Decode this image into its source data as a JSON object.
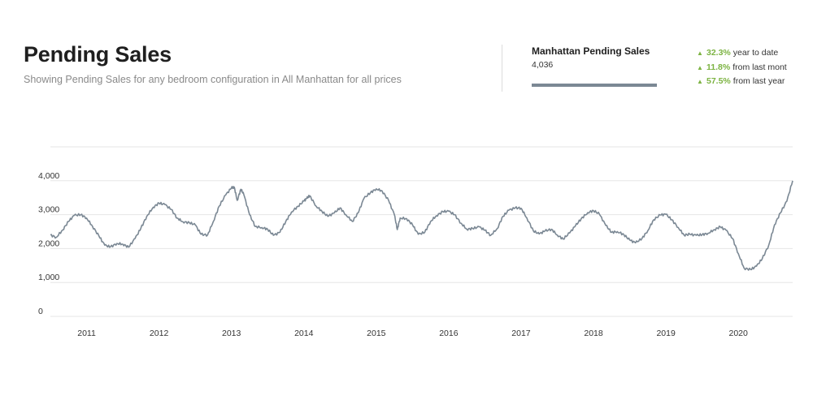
{
  "header": {
    "title": "Pending Sales",
    "subtitle": "Showing Pending Sales for any bedroom configuration in All Manhattan for all prices"
  },
  "summary": {
    "title": "Manhattan Pending Sales",
    "value": "4,036",
    "bar_color": "#7b8894",
    "stats": [
      {
        "pct": "32.3%",
        "text": "year to date",
        "direction": "up"
      },
      {
        "pct": "11.8%",
        "text": "from last mont",
        "direction": "up"
      },
      {
        "pct": "57.5%",
        "text": "from last year",
        "direction": "up"
      }
    ]
  },
  "colors": {
    "line": "#7b8894",
    "positive": "#7cb342",
    "grid": "#e6e6e6"
  },
  "chart_data": {
    "type": "line",
    "title": "",
    "xlabel": "",
    "ylabel": "",
    "ylim": [
      0,
      5000
    ],
    "y_ticks": [
      "0",
      "1,000",
      "2,000",
      "3,000",
      "4,000"
    ],
    "y_tick_values": [
      0,
      1000,
      2000,
      3000,
      4000
    ],
    "x_ticks": [
      "2011",
      "2012",
      "2013",
      "2014",
      "2015",
      "2016",
      "2017",
      "2018",
      "2019",
      "2020"
    ],
    "x_tick_values": [
      2011,
      2012,
      2013,
      2014,
      2015,
      2016,
      2017,
      2018,
      2019,
      2020
    ],
    "xlim": [
      2010.5,
      2020.75
    ],
    "grid": true,
    "legend": "none",
    "series": [
      {
        "x": [
          2010.5,
          2010.58,
          2010.67,
          2010.75,
          2010.83,
          2010.92,
          2011.0,
          2011.08,
          2011.17,
          2011.25,
          2011.33,
          2011.42,
          2011.5,
          2011.58,
          2011.67,
          2011.75,
          2011.83,
          2011.92,
          2012.0,
          2012.08,
          2012.17,
          2012.25,
          2012.33,
          2012.42,
          2012.5,
          2012.58,
          2012.67,
          2012.75,
          2012.83,
          2012.92,
          2013.0,
          2013.04,
          2013.08,
          2013.13,
          2013.17,
          2013.25,
          2013.33,
          2013.42,
          2013.5,
          2013.58,
          2013.67,
          2013.75,
          2013.83,
          2013.92,
          2014.0,
          2014.04,
          2014.08,
          2014.17,
          2014.25,
          2014.33,
          2014.42,
          2014.5,
          2014.58,
          2014.67,
          2014.75,
          2014.83,
          2014.92,
          2015.0,
          2015.08,
          2015.17,
          2015.25,
          2015.29,
          2015.33,
          2015.42,
          2015.5,
          2015.58,
          2015.67,
          2015.75,
          2015.83,
          2015.92,
          2016.0,
          2016.08,
          2016.17,
          2016.25,
          2016.33,
          2016.42,
          2016.5,
          2016.58,
          2016.67,
          2016.75,
          2016.83,
          2016.92,
          2017.0,
          2017.08,
          2017.17,
          2017.25,
          2017.33,
          2017.42,
          2017.5,
          2017.58,
          2017.67,
          2017.75,
          2017.83,
          2017.92,
          2018.0,
          2018.08,
          2018.17,
          2018.25,
          2018.33,
          2018.42,
          2018.5,
          2018.58,
          2018.67,
          2018.75,
          2018.83,
          2018.92,
          2019.0,
          2019.08,
          2019.17,
          2019.25,
          2019.33,
          2019.42,
          2019.5,
          2019.58,
          2019.67,
          2019.75,
          2019.83,
          2019.92,
          2020.0,
          2020.08,
          2020.17,
          2020.25,
          2020.33,
          2020.42,
          2020.5,
          2020.58,
          2020.67,
          2020.75
        ],
        "values": [
          2400,
          2330,
          2550,
          2800,
          2980,
          3000,
          2900,
          2660,
          2370,
          2100,
          2050,
          2150,
          2130,
          2040,
          2300,
          2600,
          2950,
          3220,
          3340,
          3300,
          3150,
          2900,
          2790,
          2760,
          2700,
          2420,
          2400,
          2800,
          3250,
          3580,
          3790,
          3810,
          3420,
          3750,
          3600,
          3000,
          2650,
          2620,
          2570,
          2390,
          2480,
          2800,
          3080,
          3250,
          3400,
          3480,
          3560,
          3250,
          3100,
          2950,
          3050,
          3200,
          3000,
          2800,
          3050,
          3480,
          3650,
          3760,
          3700,
          3420,
          3000,
          2560,
          2900,
          2880,
          2700,
          2420,
          2480,
          2800,
          2970,
          3090,
          3100,
          3000,
          2750,
          2570,
          2590,
          2640,
          2540,
          2390,
          2590,
          2950,
          3130,
          3200,
          3190,
          2900,
          2520,
          2430,
          2520,
          2570,
          2400,
          2280,
          2460,
          2670,
          2880,
          3060,
          3120,
          3020,
          2680,
          2480,
          2500,
          2410,
          2250,
          2170,
          2300,
          2530,
          2850,
          2990,
          3010,
          2850,
          2620,
          2400,
          2420,
          2390,
          2410,
          2450,
          2560,
          2640,
          2540,
          2300,
          1850,
          1420,
          1380,
          1480,
          1700,
          2100,
          2700,
          3050,
          3400,
          4000
        ]
      }
    ]
  }
}
